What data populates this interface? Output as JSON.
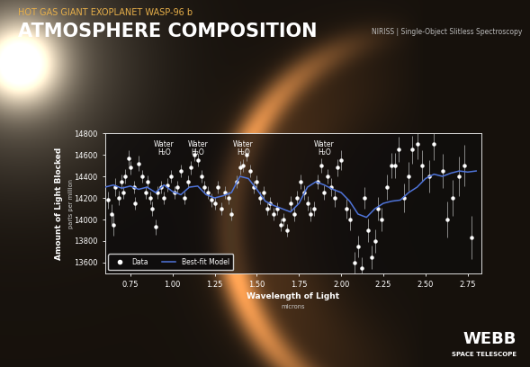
{
  "chart_data": {
    "type": "scatter",
    "subtitle": "HOT GAS GIANT EXOPLANET WASP-96 b",
    "title": "ATMOSPHERE COMPOSITION",
    "instrument": "NIRISS | Single-Object Slitless Spectroscopy",
    "logo": [
      "WEBB",
      "SPACE TELESCOPE"
    ],
    "y_label": "Amount of Light Blocked",
    "y_unit": "parts per million",
    "x_label": "Wavelength of Light",
    "x_unit": "microns",
    "annotations": [
      {
        "text": "Water\nH₂O",
        "x": 0.95
      },
      {
        "text": "Water\nH₂O",
        "x": 1.15
      },
      {
        "text": "Water\nH₂O",
        "x": 1.42
      },
      {
        "text": "Water\nH₂O",
        "x": 1.9
      }
    ],
    "xlim": [
      0.6,
      2.83
    ],
    "xticks": [
      0.75,
      {
        "value": 1.0,
        "label": "1.00"
      },
      1.25,
      {
        "value": 1.5,
        "label": "1.50"
      },
      1.75,
      {
        "value": 2.0,
        "label": "2.00"
      },
      2.25,
      {
        "value": 2.5,
        "label": "2.50"
      },
      2.75
    ],
    "ylim": [
      13500,
      14800
    ],
    "yticks": [
      13600,
      13800,
      14000,
      14200,
      14400,
      14600,
      14800
    ],
    "grid": false,
    "legend": "lower left",
    "series": [
      {
        "name": "Data",
        "type": "scatter",
        "color": "#ffffff",
        "marker": "o",
        "x": [
          0.62,
          0.64,
          0.65,
          0.66,
          0.68,
          0.7,
          0.71,
          0.72,
          0.74,
          0.75,
          0.77,
          0.78,
          0.8,
          0.82,
          0.84,
          0.85,
          0.87,
          0.88,
          0.9,
          0.91,
          0.93,
          0.95,
          0.97,
          0.99,
          1.01,
          1.03,
          1.05,
          1.07,
          1.09,
          1.11,
          1.13,
          1.15,
          1.17,
          1.19,
          1.21,
          1.23,
          1.25,
          1.27,
          1.29,
          1.31,
          1.33,
          1.35,
          1.38,
          1.4,
          1.42,
          1.44,
          1.46,
          1.48,
          1.5,
          1.52,
          1.54,
          1.56,
          1.58,
          1.6,
          1.62,
          1.64,
          1.66,
          1.68,
          1.7,
          1.72,
          1.74,
          1.76,
          1.78,
          1.8,
          1.82,
          1.84,
          1.86,
          1.88,
          1.9,
          1.92,
          1.94,
          1.96,
          1.98,
          2.0,
          2.03,
          2.05,
          2.08,
          2.1,
          2.12,
          2.14,
          2.16,
          2.18,
          2.2,
          2.22,
          2.24,
          2.27,
          2.3,
          2.32,
          2.34,
          2.37,
          2.4,
          2.42,
          2.45,
          2.48,
          2.52,
          2.55,
          2.6,
          2.63,
          2.66,
          2.7,
          2.73,
          2.77
        ],
        "values": [
          14180,
          14050,
          13950,
          14300,
          14200,
          14350,
          14250,
          14400,
          14570,
          14480,
          14300,
          14150,
          14520,
          14400,
          14250,
          14350,
          14200,
          14100,
          13930,
          14250,
          14300,
          14200,
          14320,
          14400,
          14250,
          14300,
          14450,
          14200,
          14350,
          14480,
          14600,
          14550,
          14400,
          14300,
          14250,
          14180,
          14150,
          14300,
          14100,
          14250,
          14200,
          14050,
          14350,
          14480,
          14500,
          14600,
          14450,
          14300,
          14350,
          14200,
          14250,
          14100,
          14150,
          14050,
          14100,
          13950,
          14000,
          13900,
          14150,
          14050,
          14200,
          14350,
          14250,
          14150,
          14050,
          14100,
          14350,
          14500,
          14250,
          14400,
          14300,
          14200,
          14480,
          14550,
          14100,
          14000,
          13600,
          13750,
          13550,
          14200,
          13900,
          13650,
          13800,
          14100,
          14000,
          14300,
          14500,
          14500,
          14650,
          14200,
          14400,
          14650,
          14700,
          14500,
          14400,
          14700,
          14450,
          14000,
          14200,
          14400,
          14500,
          13830
        ],
        "errors": [
          80,
          90,
          100,
          80,
          70,
          70,
          60,
          70,
          70,
          60,
          60,
          60,
          70,
          60,
          60,
          60,
          60,
          70,
          70,
          60,
          60,
          60,
          60,
          60,
          60,
          60,
          60,
          60,
          60,
          60,
          60,
          60,
          60,
          60,
          60,
          60,
          60,
          60,
          60,
          60,
          60,
          60,
          60,
          60,
          60,
          60,
          60,
          60,
          60,
          60,
          60,
          60,
          60,
          60,
          60,
          60,
          60,
          60,
          70,
          70,
          70,
          70,
          70,
          70,
          70,
          70,
          70,
          70,
          70,
          70,
          80,
          80,
          80,
          90,
          90,
          100,
          100,
          100,
          100,
          100,
          110,
          110,
          110,
          110,
          110,
          120,
          120,
          120,
          120,
          130,
          130,
          130,
          140,
          140,
          150,
          150,
          160,
          170,
          170,
          180,
          190,
          200
        ]
      },
      {
        "name": "Best-fit Model",
        "type": "line",
        "color": "#4f74d9",
        "line_style": "solid",
        "x": [
          0.6,
          0.65,
          0.7,
          0.75,
          0.8,
          0.85,
          0.9,
          0.95,
          1.0,
          1.05,
          1.1,
          1.15,
          1.2,
          1.25,
          1.3,
          1.35,
          1.4,
          1.45,
          1.5,
          1.55,
          1.6,
          1.65,
          1.7,
          1.75,
          1.8,
          1.85,
          1.9,
          1.95,
          2.0,
          2.05,
          2.1,
          2.15,
          2.2,
          2.25,
          2.3,
          2.35,
          2.4,
          2.45,
          2.5,
          2.55,
          2.6,
          2.65,
          2.7,
          2.75,
          2.8
        ],
        "values": [
          14300,
          14320,
          14290,
          14310,
          14280,
          14300,
          14250,
          14320,
          14260,
          14230,
          14300,
          14310,
          14230,
          14200,
          14220,
          14250,
          14400,
          14380,
          14280,
          14170,
          14130,
          14100,
          14070,
          14150,
          14300,
          14350,
          14320,
          14280,
          14250,
          14170,
          14050,
          14020,
          14100,
          14150,
          14170,
          14180,
          14250,
          14300,
          14380,
          14420,
          14400,
          14430,
          14450,
          14440,
          14450
        ]
      }
    ]
  }
}
